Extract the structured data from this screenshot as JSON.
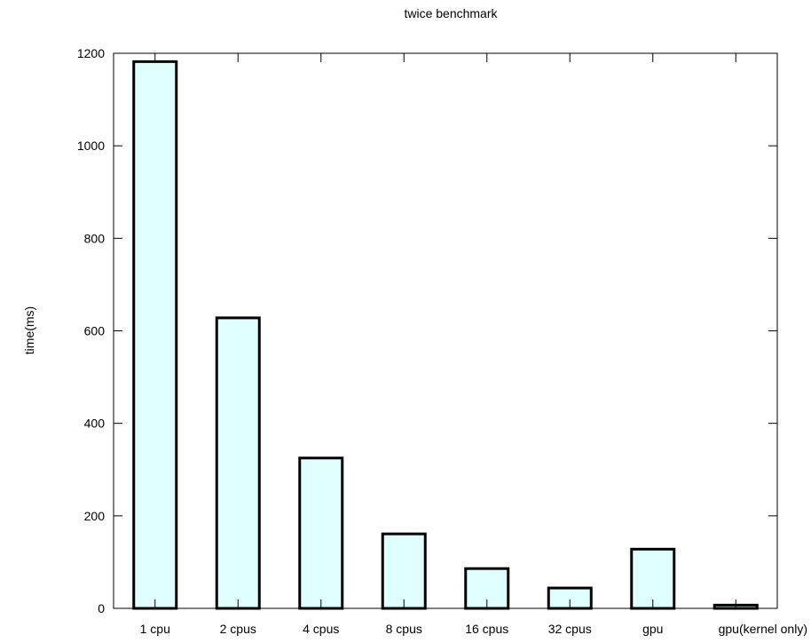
{
  "chart_data": {
    "type": "bar",
    "title": "twice benchmark",
    "xlabel": "",
    "ylabel": "time(ms)",
    "categories": [
      "1 cpu",
      "2 cpus",
      "4 cpus",
      "8 cpus",
      "16 cpus",
      "32 cpus",
      "gpu",
      "gpu(kernel only)"
    ],
    "values": [
      1182,
      628,
      325,
      161,
      86,
      44,
      128,
      7
    ],
    "ylim": [
      0,
      1200
    ],
    "yticks": [
      0,
      200,
      400,
      600,
      800,
      1000,
      1200
    ],
    "grid": false,
    "legend": "none",
    "colors": {
      "bar_fill": "#e0ffff",
      "bar_stroke": "#000000",
      "axis": "#000000"
    }
  }
}
